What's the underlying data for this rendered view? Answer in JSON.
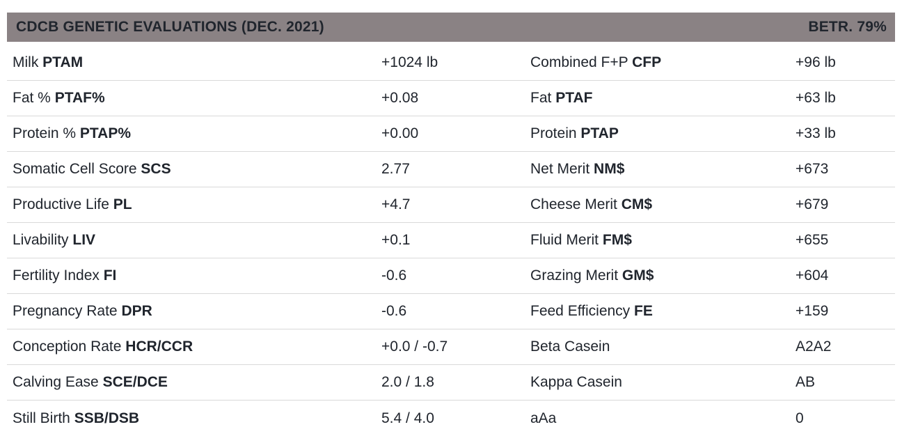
{
  "header": {
    "title": "CDCB GENETIC EVALUATIONS (DEC. 2021)",
    "reliability": "BETR. 79%"
  },
  "colors": {
    "header_bg": "#8a8284",
    "text": "#20252d",
    "divider": "#d9d9d9",
    "background": "#ffffff"
  },
  "table": {
    "rows": [
      {
        "l_label": "Milk",
        "l_abbr": "PTAM",
        "l_value": "+1024 lb",
        "r_label": "Combined F+P",
        "r_abbr": "CFP",
        "r_value": "+96 lb"
      },
      {
        "l_label": "Fat %",
        "l_abbr": "PTAF%",
        "l_value": "+0.08",
        "r_label": "Fat",
        "r_abbr": "PTAF",
        "r_value": "+63 lb"
      },
      {
        "l_label": "Protein %",
        "l_abbr": "PTAP%",
        "l_value": "+0.00",
        "r_label": "Protein",
        "r_abbr": "PTAP",
        "r_value": "+33 lb"
      },
      {
        "l_label": "Somatic Cell Score",
        "l_abbr": "SCS",
        "l_value": "2.77",
        "r_label": "Net Merit",
        "r_abbr": "NM$",
        "r_value": "+673"
      },
      {
        "l_label": "Productive Life",
        "l_abbr": "PL",
        "l_value": "+4.7",
        "r_label": "Cheese Merit",
        "r_abbr": "CM$",
        "r_value": "+679"
      },
      {
        "l_label": "Livability",
        "l_abbr": "LIV",
        "l_value": "+0.1",
        "r_label": "Fluid Merit",
        "r_abbr": "FM$",
        "r_value": "+655"
      },
      {
        "l_label": "Fertility Index",
        "l_abbr": "FI",
        "l_value": "-0.6",
        "r_label": "Grazing Merit",
        "r_abbr": "GM$",
        "r_value": "+604"
      },
      {
        "l_label": "Pregnancy Rate",
        "l_abbr": "DPR",
        "l_value": "-0.6",
        "r_label": "Feed Efficiency",
        "r_abbr": "FE",
        "r_value": "+159"
      },
      {
        "l_label": "Conception Rate",
        "l_abbr": "HCR/CCR",
        "l_value": "+0.0 / -0.7",
        "r_label": "Beta Casein",
        "r_abbr": "",
        "r_value": "A2A2"
      },
      {
        "l_label": "Calving Ease",
        "l_abbr": "SCE/DCE",
        "l_value": "2.0 / 1.8",
        "r_label": "Kappa Casein",
        "r_abbr": "",
        "r_value": "AB"
      },
      {
        "l_label": "Still Birth",
        "l_abbr": "SSB/DSB",
        "l_value": "5.4 / 4.0",
        "r_label": "aAa",
        "r_abbr": "",
        "r_value": "0"
      }
    ]
  }
}
